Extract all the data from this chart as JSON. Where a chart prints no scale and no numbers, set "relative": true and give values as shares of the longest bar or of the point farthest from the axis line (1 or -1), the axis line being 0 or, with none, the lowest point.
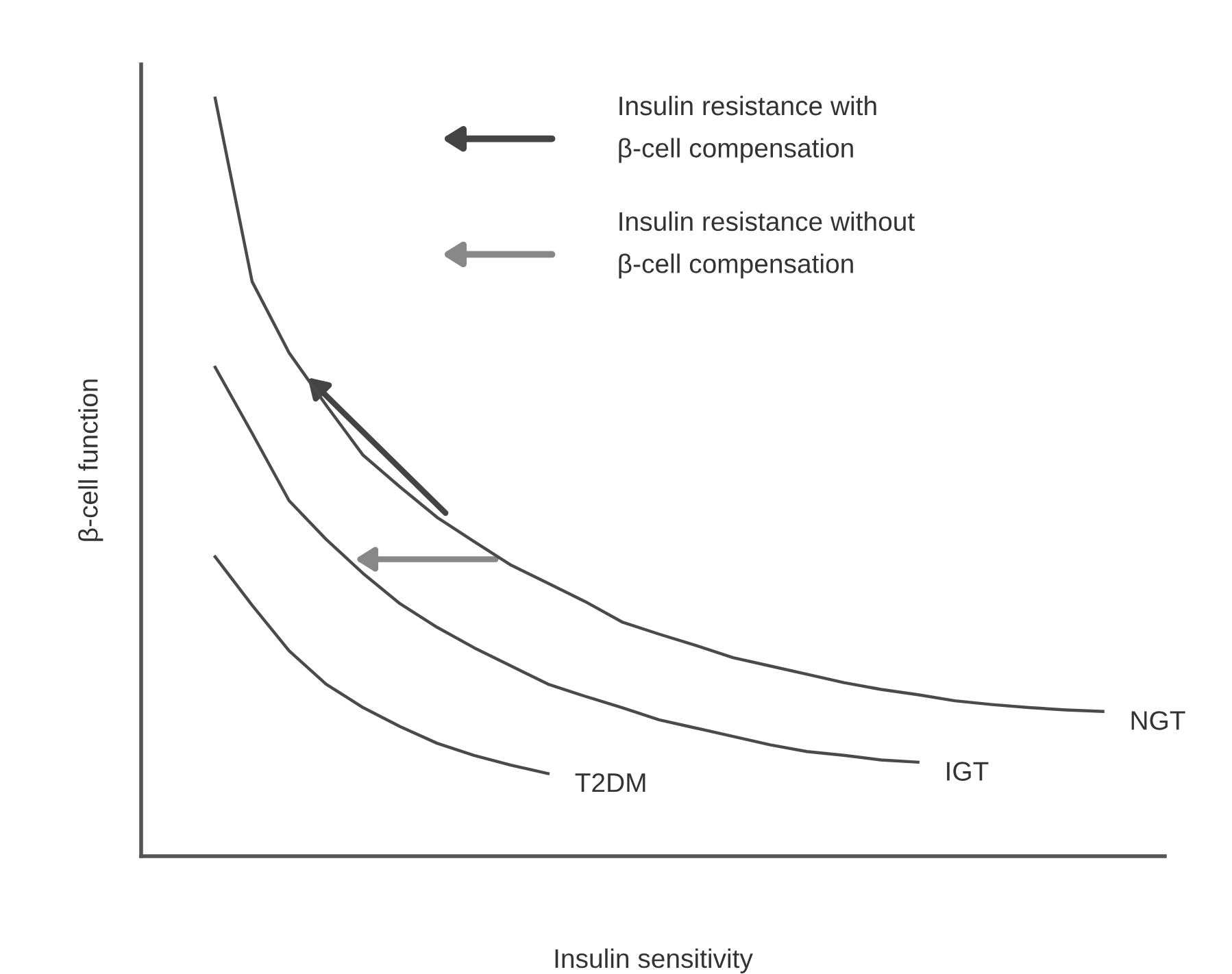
{
  "chart_data": {
    "type": "line",
    "relative": true,
    "xlabel": "Insulin sensitivity",
    "ylabel": "β-cell function",
    "marker": "none",
    "line_style": "solid",
    "categories": [
      null,
      null,
      null,
      null,
      null,
      null,
      null,
      null,
      null,
      null,
      null,
      null,
      null,
      null,
      null,
      null,
      null,
      null,
      null,
      null,
      null,
      null,
      null,
      null,
      null
    ],
    "annotations": [
      "Insulin resistance with\nβ-cell compensation",
      "Insulin resistance without\nβ-cell compensation"
    ],
    "series": [
      {
        "name": "NGT",
        "color": "#4a4a4a",
        "values": [
          1.0,
          0.758,
          0.664,
          0.595,
          0.529,
          0.487,
          0.447,
          0.415,
          0.384,
          0.36,
          0.336,
          0.309,
          0.293,
          0.278,
          0.262,
          0.251,
          0.24,
          0.229,
          0.22,
          0.213,
          0.205,
          0.2,
          0.196,
          0.193,
          0.191
        ]
      },
      {
        "name": "IGT",
        "color": "#4a4a4a",
        "values": [
          0.645,
          0.558,
          0.469,
          0.418,
          0.373,
          0.333,
          0.302,
          0.275,
          0.251,
          0.227,
          0.211,
          0.196,
          0.18,
          0.169,
          0.158,
          0.147,
          0.138,
          0.133,
          0.127,
          0.124,
          null,
          null,
          null,
          null,
          null
        ]
      },
      {
        "name": "T2DM",
        "color": "#4a4a4a",
        "values": [
          0.395,
          0.331,
          0.271,
          0.227,
          0.196,
          0.171,
          0.149,
          0.133,
          0.12,
          0.109,
          null,
          null,
          null,
          null,
          null,
          null,
          null,
          null,
          null,
          null,
          null,
          null,
          null,
          null,
          null
        ]
      }
    ]
  }
}
